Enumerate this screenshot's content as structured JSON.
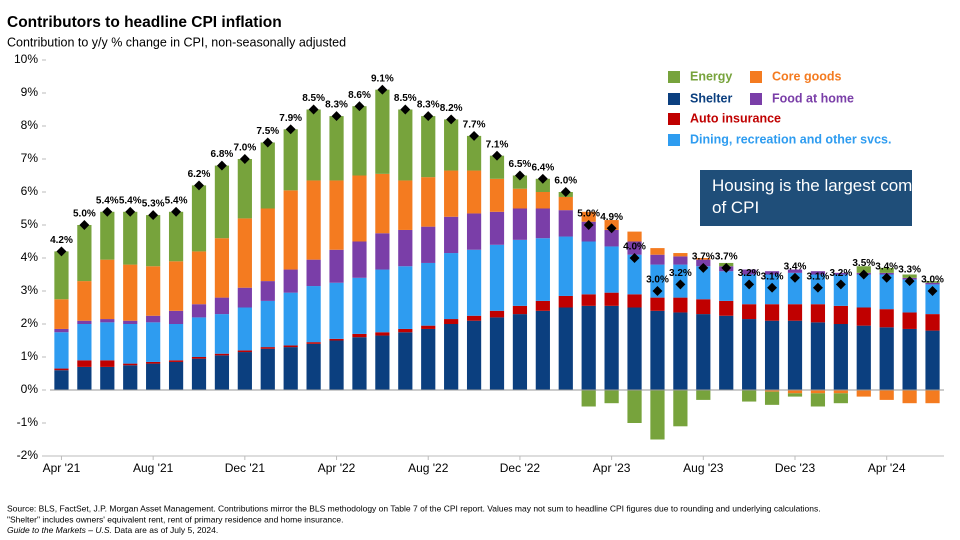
{
  "chart_data": {
    "type": "stacked-bar",
    "title": "Contributors to headline CPI inflation",
    "subtitle": "Contribution to y/y % change in CPI, non-seasonally adjusted",
    "categories": [
      "Apr '21",
      null,
      null,
      null,
      "Aug '21",
      null,
      null,
      null,
      "Dec '21",
      null,
      null,
      null,
      "Apr '22",
      null,
      null,
      null,
      "Aug '22",
      null,
      null,
      null,
      "Dec '22",
      null,
      null,
      null,
      "Apr '23",
      null,
      null,
      null,
      "Aug '23",
      null,
      null,
      null,
      "Dec '23",
      null,
      null,
      null,
      "Apr '24",
      null,
      null
    ],
    "series": [
      {
        "name": "Shelter",
        "color": "#0b3f7f",
        "values": [
          0.6,
          0.7,
          0.7,
          0.75,
          0.8,
          0.85,
          0.95,
          1.05,
          1.15,
          1.25,
          1.3,
          1.4,
          1.5,
          1.6,
          1.65,
          1.75,
          1.85,
          2.0,
          2.1,
          2.2,
          2.3,
          2.4,
          2.5,
          2.55,
          2.55,
          2.5,
          2.4,
          2.35,
          2.3,
          2.25,
          2.15,
          2.1,
          2.1,
          2.05,
          2.0,
          1.95,
          1.9,
          1.85,
          1.8
        ]
      },
      {
        "name": "Auto insurance",
        "color": "#c00000",
        "values": [
          0.05,
          0.2,
          0.2,
          0.05,
          0.05,
          0.05,
          0.05,
          0.05,
          0.05,
          0.05,
          0.05,
          0.05,
          0.05,
          0.1,
          0.1,
          0.1,
          0.1,
          0.15,
          0.15,
          0.2,
          0.25,
          0.3,
          0.35,
          0.35,
          0.4,
          0.4,
          0.4,
          0.45,
          0.45,
          0.45,
          0.45,
          0.5,
          0.5,
          0.55,
          0.55,
          0.55,
          0.55,
          0.5,
          0.5
        ]
      },
      {
        "name": "Dining, recreation and other svcs.",
        "color": "#2e9cf0",
        "values": [
          1.1,
          1.1,
          1.15,
          1.2,
          1.2,
          1.1,
          1.2,
          1.2,
          1.3,
          1.4,
          1.6,
          1.7,
          1.7,
          1.7,
          1.9,
          1.9,
          1.9,
          2.0,
          2.0,
          2.0,
          2.0,
          1.9,
          1.8,
          1.6,
          1.4,
          1.2,
          1.0,
          1.0,
          1.0,
          0.9,
          0.9,
          0.9,
          0.95,
          0.9,
          0.95,
          1.0,
          1.05,
          1.0,
          0.9
        ]
      },
      {
        "name": "Food at home",
        "color": "#7a3ea8",
        "values": [
          0.1,
          0.1,
          0.1,
          0.1,
          0.2,
          0.4,
          0.4,
          0.5,
          0.6,
          0.6,
          0.7,
          0.8,
          1.0,
          1.1,
          1.1,
          1.1,
          1.1,
          1.1,
          1.1,
          1.0,
          0.95,
          0.9,
          0.8,
          0.6,
          0.5,
          0.4,
          0.3,
          0.25,
          0.2,
          0.15,
          0.15,
          0.1,
          0.1,
          0.1,
          0.05,
          0.05,
          0.05,
          0.05,
          0.05
        ]
      },
      {
        "name": "Core goods",
        "color": "#f47b20",
        "values": [
          0.9,
          1.2,
          1.8,
          1.7,
          1.5,
          1.5,
          1.6,
          1.8,
          2.1,
          2.2,
          2.4,
          2.4,
          2.1,
          2.0,
          1.8,
          1.5,
          1.5,
          1.4,
          1.3,
          1.0,
          0.6,
          0.5,
          0.4,
          0.3,
          0.3,
          0.3,
          0.2,
          0.1,
          0.05,
          0,
          0,
          -0.05,
          -0.1,
          -0.1,
          -0.1,
          -0.2,
          -0.3,
          -0.4,
          -0.4
        ]
      },
      {
        "name": "Energy",
        "color": "#77a33c",
        "values": [
          1.45,
          1.7,
          1.45,
          1.6,
          1.55,
          1.5,
          2.0,
          2.2,
          1.8,
          2.0,
          1.85,
          2.15,
          1.95,
          2.1,
          2.55,
          2.15,
          1.85,
          1.55,
          1.05,
          0.7,
          0.4,
          0.4,
          0.15,
          -0.5,
          -0.4,
          -1.0,
          -1.5,
          -1.1,
          -0.3,
          0.1,
          -0.35,
          -0.4,
          -0.1,
          -0.4,
          -0.3,
          0.2,
          0.15,
          0.1,
          0.05
        ]
      }
    ],
    "headline": {
      "values": [
        4.2,
        5.0,
        5.4,
        5.4,
        5.3,
        5.4,
        6.2,
        6.8,
        7.0,
        7.5,
        7.9,
        8.5,
        8.3,
        8.6,
        9.1,
        8.5,
        8.3,
        8.2,
        7.7,
        7.1,
        6.5,
        6.4,
        6.0,
        5.0,
        4.9,
        4.0,
        3.0,
        3.2,
        3.7,
        3.7,
        3.2,
        3.1,
        3.4,
        3.1,
        3.2,
        3.5,
        3.4,
        3.3,
        3.0
      ],
      "value_labels": [
        "4.2%",
        "5.0%",
        "5.4%",
        "5.4%",
        "5.3%",
        "5.4%",
        "6.2%",
        "6.8%",
        "7.0%",
        "7.5%",
        "7.9%",
        "8.5%",
        "8.3%",
        "8.6%",
        "9.1%",
        "8.5%",
        "8.3%",
        "8.2%",
        "7.7%",
        "7.1%",
        "6.5%",
        "6.4%",
        "6.0%",
        "5.0%",
        "4.9%",
        "4.0%",
        "3.0%",
        "3.2%",
        "3.7%",
        "3.7%",
        "3.2%",
        "3.1%",
        "3.4%",
        "3.1%",
        "3.2%",
        "3.5%",
        "3.4%",
        "3.3%",
        "3.0%"
      ]
    },
    "ylim": [
      -2,
      10
    ],
    "yticks": [
      {
        "value": -2,
        "label": "-2%"
      },
      {
        "value": -1,
        "label": "-1%"
      },
      {
        "value": 0,
        "label": "0%"
      },
      {
        "value": 1,
        "label": "1%"
      },
      {
        "value": 2,
        "label": "2%"
      },
      {
        "value": 3,
        "label": "3%"
      },
      {
        "value": 4,
        "label": "4%"
      },
      {
        "value": 5,
        "label": "5%"
      },
      {
        "value": 6,
        "label": "6%"
      },
      {
        "value": 7,
        "label": "7%"
      },
      {
        "value": 8,
        "label": "8%"
      },
      {
        "value": 9,
        "label": "9%"
      },
      {
        "value": 10,
        "label": "10%"
      }
    ],
    "annotation": "Housing is the largest component of CPI",
    "footnotes": [
      "Source: BLS, FactSet, J.P. Morgan Asset Management.  Contributions mirror the BLS methodology on Table 7 of the CPI report. Values may not sum to headline CPI figures due to rounding and underlying calculations.",
      "\"Shelter\" includes owners' equivalent rent, rent of primary residence and home insurance.",
      "Guide to the Markets – U.S.",
      "Data are as of July 5, 2024."
    ]
  }
}
